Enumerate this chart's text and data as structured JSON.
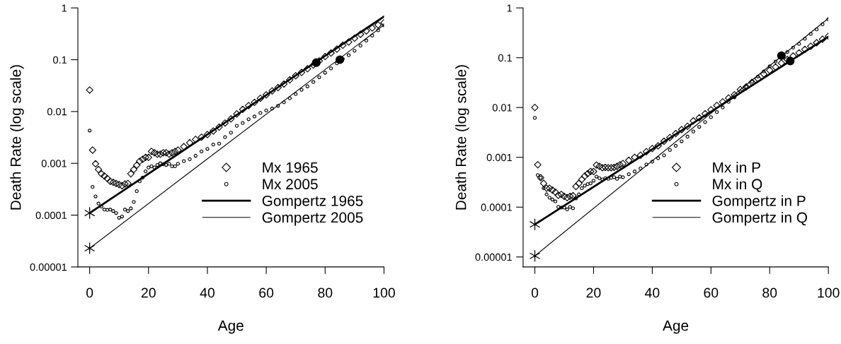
{
  "chart_data": [
    {
      "type": "scatter",
      "xlabel": "Age",
      "ylabel": "Death Rate (log scale)",
      "log": "y",
      "legend": "bottom right",
      "xlim": [
        -4,
        100
      ],
      "ylim": [
        1e-05,
        1
      ],
      "xticks": [
        0,
        20,
        40,
        60,
        80,
        100
      ],
      "yticks": [
        {
          "value": 1e-05,
          "label": "0.00001"
        },
        {
          "value": 0.0001,
          "label": "0.0001"
        },
        {
          "value": 0.001,
          "label": "0.001"
        },
        {
          "value": 0.01,
          "label": "0.01"
        },
        {
          "value": 0.1,
          "label": "0.1"
        },
        {
          "value": 1,
          "label": "1"
        }
      ],
      "series": [
        {
          "name": "Mx 1965",
          "marker": "diamond",
          "color": "#000000",
          "x": [
            0,
            1,
            2,
            3,
            4,
            5,
            6,
            7,
            8,
            9,
            10,
            11,
            12,
            13,
            14,
            15,
            16,
            17,
            18,
            19,
            20,
            21,
            22,
            23,
            24,
            25,
            26,
            27,
            28,
            29,
            30,
            32,
            34,
            36,
            38,
            40,
            42,
            44,
            46,
            48,
            50,
            52,
            54,
            56,
            58,
            60,
            62,
            64,
            66,
            68,
            70,
            72,
            74,
            76,
            78,
            80,
            82,
            84,
            86,
            88,
            90,
            92,
            94,
            96,
            98,
            100
          ],
          "values": [
            0.026,
            0.0018,
            0.00098,
            0.00076,
            0.00063,
            0.00057,
            0.00051,
            0.00045,
            0.00043,
            0.00041,
            0.00039,
            0.00037,
            0.0004,
            0.00041,
            0.00063,
            0.00076,
            0.00092,
            0.0011,
            0.0012,
            0.0013,
            0.0013,
            0.0017,
            0.0016,
            0.0015,
            0.0015,
            0.0016,
            0.0016,
            0.0015,
            0.0016,
            0.0017,
            0.0018,
            0.0021,
            0.0025,
            0.0029,
            0.0032,
            0.0036,
            0.0042,
            0.005,
            0.006,
            0.0072,
            0.009,
            0.011,
            0.013,
            0.015,
            0.018,
            0.021,
            0.025,
            0.029,
            0.034,
            0.041,
            0.049,
            0.057,
            0.067,
            0.079,
            0.095,
            0.115,
            0.135,
            0.16,
            0.19,
            0.22,
            0.26,
            0.31,
            0.36,
            0.41,
            0.47,
            0.52
          ]
        },
        {
          "name": "Mx 2005",
          "marker": "circle",
          "color": "#000000",
          "x": [
            0,
            1,
            2,
            3,
            4,
            5,
            6,
            7,
            8,
            9,
            10,
            11,
            12,
            13,
            14,
            15,
            16,
            17,
            18,
            19,
            20,
            21,
            22,
            23,
            24,
            25,
            26,
            27,
            28,
            29,
            30,
            32,
            34,
            36,
            38,
            40,
            42,
            44,
            46,
            48,
            50,
            52,
            54,
            56,
            58,
            60,
            62,
            64,
            66,
            68,
            70,
            72,
            74,
            76,
            78,
            80,
            82,
            84,
            86,
            88,
            90,
            92,
            94,
            96,
            98,
            100
          ],
          "values": [
            0.0043,
            0.00035,
            0.00023,
            0.000167,
            0.000147,
            0.000128,
            0.000126,
            0.000128,
            0.00012,
            0.00011,
            8.9e-05,
            9.4e-05,
            0.000128,
            0.00012,
            0.000135,
            0.00018,
            0.00029,
            0.00045,
            0.00053,
            0.0007,
            0.00083,
            0.00088,
            0.00083,
            0.00093,
            0.001,
            0.00096,
            0.00093,
            0.00098,
            0.00088,
            0.00088,
            0.00098,
            0.0011,
            0.0012,
            0.0014,
            0.0017,
            0.0019,
            0.0023,
            0.0024,
            0.0032,
            0.0039,
            0.0053,
            0.006,
            0.0071,
            0.008,
            0.0094,
            0.0105,
            0.0114,
            0.0129,
            0.0151,
            0.018,
            0.0217,
            0.0263,
            0.0306,
            0.037,
            0.046,
            0.056,
            0.068,
            0.085,
            0.104,
            0.122,
            0.149,
            0.187,
            0.234,
            0.292,
            0.37,
            0.46
          ]
        },
        {
          "name": "Gompertz 1965",
          "type": "line",
          "color": "#000000",
          "x": [
            0,
            100
          ],
          "values": [
            0.00011,
            0.68
          ]
        },
        {
          "name": "Gompertz 2005",
          "type": "line",
          "color": "#000000",
          "x": [
            0,
            100
          ],
          "values": [
            2.3e-05,
            0.47
          ]
        },
        {
          "marker": "circle",
          "color": "#000000",
          "x": [
            77,
            85
          ],
          "values": [
            0.088,
            0.1
          ]
        },
        {
          "marker": "cross",
          "color": "#000000",
          "x": [
            0,
            0
          ],
          "values": [
            0.00011,
            2.3e-05
          ]
        }
      ]
    },
    {
      "type": "scatter",
      "xlabel": "Age",
      "ylabel": "Death Rate (log scale)",
      "log": "y",
      "legend": "bottom right",
      "xlim": [
        -4,
        100
      ],
      "ylim": [
        6.3e-06,
        1
      ],
      "xticks": [
        0,
        20,
        40,
        60,
        80,
        100
      ],
      "yticks": [
        {
          "value": 1e-05,
          "label": "0.00001"
        },
        {
          "value": 0.0001,
          "label": "0.0001"
        },
        {
          "value": 0.001,
          "label": "0.001"
        },
        {
          "value": 0.01,
          "label": "0.01"
        },
        {
          "value": 0.1,
          "label": "0.1"
        },
        {
          "value": 1,
          "label": "1"
        }
      ],
      "series": [
        {
          "name": "Mx in P",
          "marker": "diamond",
          "color": "#000000",
          "x": [
            0,
            1,
            2,
            3,
            4,
            5,
            6,
            7,
            8,
            9,
            10,
            11,
            12,
            13,
            14,
            15,
            16,
            17,
            18,
            19,
            20,
            21,
            22,
            23,
            24,
            25,
            26,
            27,
            28,
            29,
            30,
            32,
            34,
            36,
            38,
            40,
            42,
            44,
            46,
            48,
            50,
            52,
            54,
            56,
            58,
            60,
            62,
            64,
            66,
            68,
            70,
            72,
            74,
            76,
            78,
            80,
            82,
            84,
            86,
            88,
            90,
            92,
            94,
            96,
            98,
            100
          ],
          "values": [
            0.01,
            0.00071,
            0.00039,
            0.0003,
            0.00024,
            0.00024,
            0.00022,
            0.0002,
            0.000173,
            0.00018,
            0.000165,
            0.000155,
            0.000165,
            0.00017,
            0.00026,
            0.0003,
            0.00036,
            0.00042,
            0.00047,
            0.00052,
            0.00052,
            0.0007,
            0.00066,
            0.00062,
            0.00063,
            0.00062,
            0.00062,
            0.00063,
            0.00066,
            0.00071,
            0.00075,
            0.00087,
            0.001,
            0.0011,
            0.0013,
            0.0015,
            0.0017,
            0.0021,
            0.0025,
            0.003,
            0.0036,
            0.0042,
            0.0054,
            0.0062,
            0.0075,
            0.009,
            0.011,
            0.013,
            0.0155,
            0.018,
            0.023,
            0.026,
            0.032,
            0.038,
            0.047,
            0.056,
            0.065,
            0.078,
            0.092,
            0.108,
            0.125,
            0.147,
            0.17,
            0.2,
            0.235,
            0.27
          ]
        },
        {
          "name": "Mx in Q",
          "marker": "circle",
          "color": "#000000",
          "x": [
            0,
            1,
            2,
            3,
            4,
            5,
            6,
            7,
            8,
            9,
            10,
            11,
            12,
            13,
            14,
            15,
            16,
            17,
            18,
            19,
            20,
            21,
            22,
            23,
            24,
            25,
            26,
            27,
            28,
            29,
            30,
            32,
            34,
            36,
            38,
            40,
            42,
            44,
            46,
            48,
            50,
            52,
            54,
            56,
            58,
            60,
            62,
            64,
            66,
            68,
            70,
            72,
            74,
            76,
            78,
            80,
            82,
            84,
            86,
            88,
            90,
            92,
            94,
            96,
            98,
            100
          ],
          "values": [
            0.0062,
            0.00044,
            0.00039,
            0.00024,
            0.00018,
            0.000155,
            0.000142,
            0.00013,
            0.000101,
            9.8e-05,
            9.8e-05,
            9e-05,
            0.000101,
            9.5e-05,
            0.00015,
            0.00018,
            0.00024,
            0.00027,
            0.00029,
            0.0003,
            0.00034,
            0.00041,
            0.00038,
            0.00036,
            0.00038,
            0.00037,
            0.00039,
            0.0004,
            0.00037,
            0.00041,
            0.0004,
            0.00046,
            0.00052,
            0.0006,
            0.00072,
            0.00082,
            0.00096,
            0.0011,
            0.0014,
            0.0017,
            0.0021,
            0.0026,
            0.0033,
            0.0041,
            0.0051,
            0.0064,
            0.0081,
            0.01,
            0.013,
            0.016,
            0.021,
            0.026,
            0.033,
            0.042,
            0.053,
            0.067,
            0.084,
            null,
            0.13,
            0.16,
            0.19,
            0.24,
            0.3,
            0.37,
            0.47,
            0.59
          ]
        },
        {
          "name": "Gompertz in P",
          "type": "line",
          "color": "#000000",
          "x": [
            0,
            100
          ],
          "values": [
            4.5e-05,
            0.265
          ]
        },
        {
          "name": "Gompertz in Q",
          "type": "line",
          "color": "#000000",
          "x": [
            0,
            100
          ],
          "values": [
            1.05e-05,
            0.62
          ]
        },
        {
          "marker": "circle",
          "color": "#000000",
          "x": [
            84,
            87
          ],
          "values": [
            0.11,
            0.086
          ]
        },
        {
          "marker": "cross",
          "color": "#000000",
          "x": [
            0,
            0
          ],
          "values": [
            4.5e-05,
            1.05e-05
          ]
        }
      ]
    }
  ]
}
